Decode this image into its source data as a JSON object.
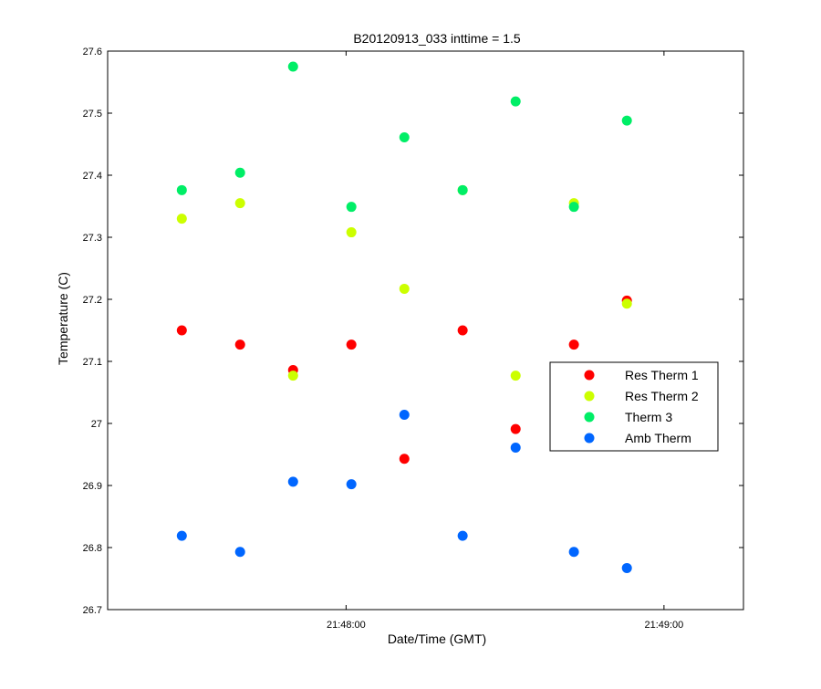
{
  "chart_data": {
    "type": "scatter",
    "title": "B20120913_033 inttime = 1.5",
    "xlabel": "Date/Time (GMT)",
    "ylabel": "Temperature (C)",
    "ylim": [
      26.7,
      27.6
    ],
    "xlim": [
      "21:47:15",
      "21:49:15"
    ],
    "y_ticks": [
      "26.7",
      "26.8",
      "26.9",
      "27",
      "27.1",
      "27.2",
      "27.3",
      "27.4",
      "27.5",
      "27.6"
    ],
    "x_ticks": [
      "21:48:00",
      "21:49:00"
    ],
    "grid": false,
    "legend_position": "right",
    "x": [
      "21:47:29",
      "21:47:40",
      "21:47:50",
      "21:48:01",
      "21:48:11",
      "21:48:22",
      "21:48:32",
      "21:48:43",
      "21:48:53"
    ],
    "series": [
      {
        "name": "Res Therm 1",
        "color": "#ff0000",
        "values": [
          27.15,
          27.127,
          27.086,
          27.127,
          26.943,
          27.15,
          26.991,
          27.127,
          27.198
        ]
      },
      {
        "name": "Res Therm 2",
        "color": "#ccff00",
        "values": [
          27.33,
          27.355,
          27.077,
          27.308,
          27.217,
          27.376,
          27.077,
          27.355,
          27.193
        ]
      },
      {
        "name": "Therm 3",
        "color": "#00ee66",
        "values": [
          27.376,
          27.404,
          27.575,
          27.349,
          27.461,
          27.376,
          27.519,
          27.349,
          27.488
        ]
      },
      {
        "name": "Amb Therm",
        "color": "#0066ff",
        "values": [
          26.819,
          26.793,
          26.906,
          26.902,
          27.014,
          26.819,
          26.961,
          26.793,
          26.767
        ]
      }
    ]
  }
}
